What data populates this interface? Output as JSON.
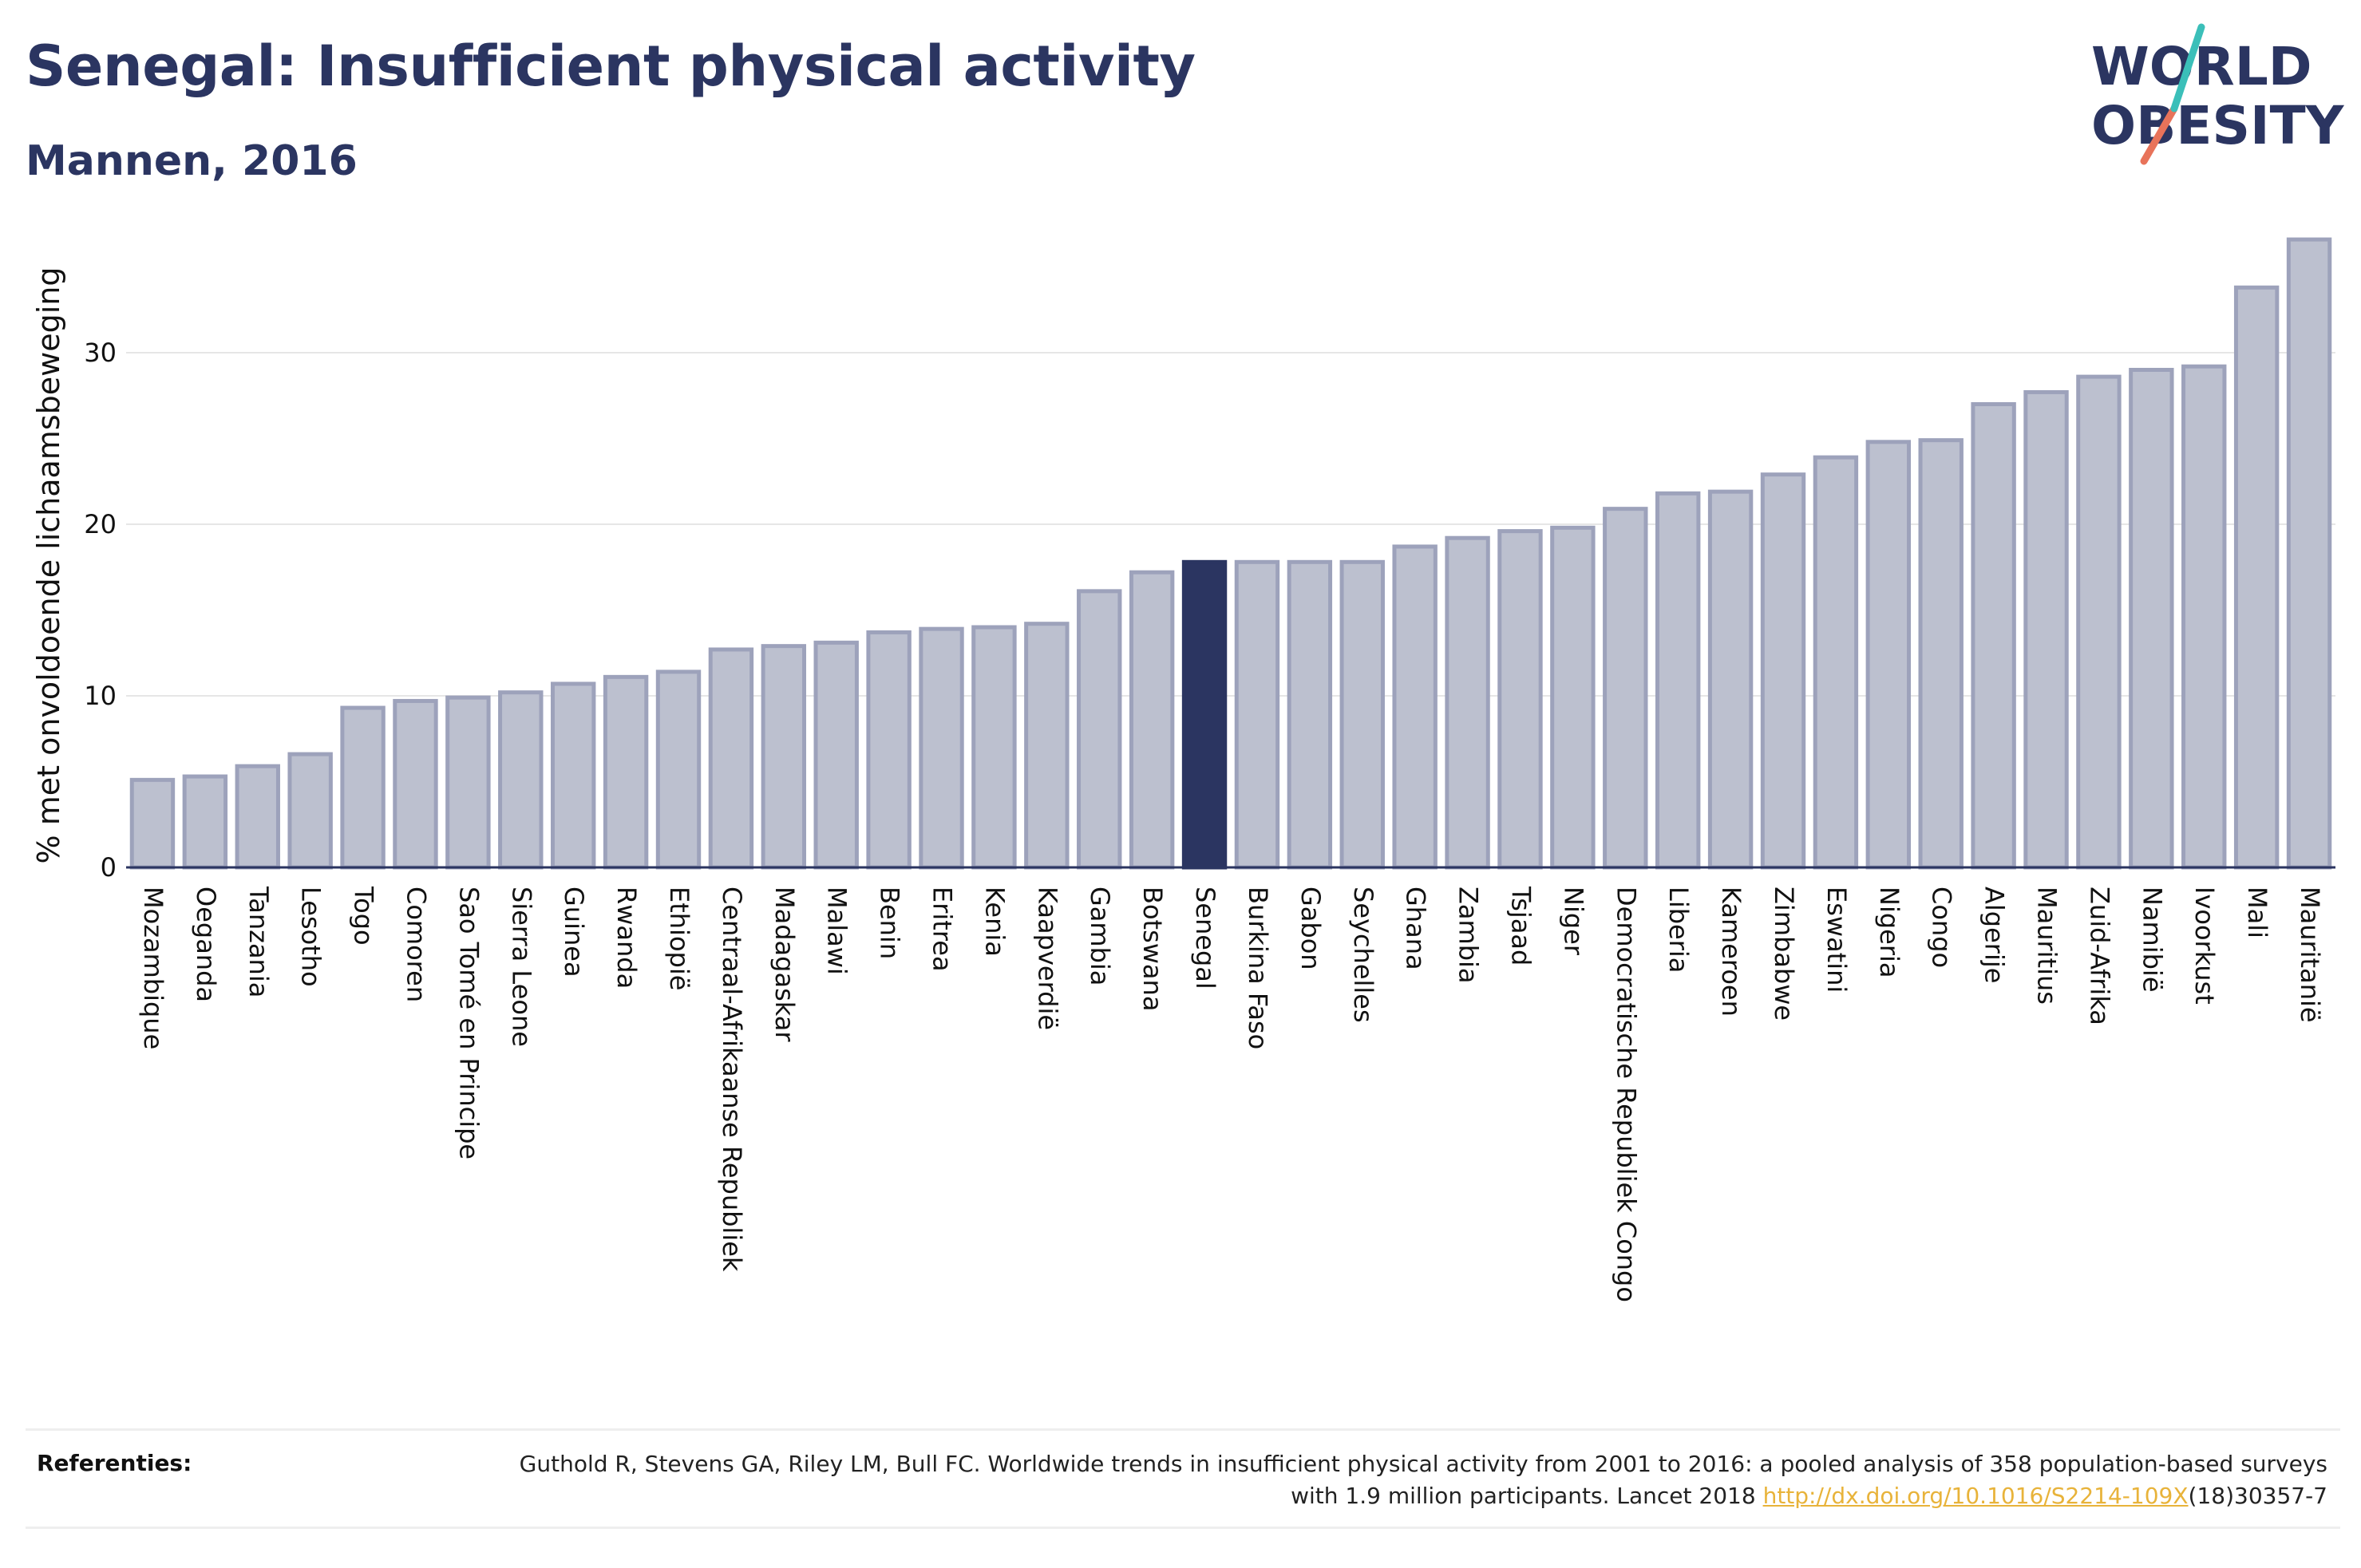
{
  "header": {
    "title": "Senegal: Insufficient physical activity",
    "subtitle": "Mannen, 2016"
  },
  "logo": {
    "line1": "WORLD",
    "line2": "OBESITY"
  },
  "colors": {
    "highlight": "#2b3561",
    "bar_fill": "#bcc0cf",
    "bar_stroke": "#9da2bb",
    "grid": "#e6e6e6",
    "logo_teal": "#3bbfb9",
    "logo_coral": "#e8735a"
  },
  "chart_data": {
    "type": "bar",
    "ylabel": "% met onvoldoende lichaamsbeweging",
    "ylim": [
      0,
      38
    ],
    "yticks": [
      0,
      10,
      20,
      30
    ],
    "highlight": "Senegal",
    "categories": [
      "Mozambique",
      "Oeganda",
      "Tanzania",
      "Lesotho",
      "Togo",
      "Comoren",
      "Sao Tomé en Principe",
      "Sierra Leone",
      "Guinea",
      "Rwanda",
      "Ethiopië",
      "Centraal-Afrikaanse Republiek",
      "Madagaskar",
      "Malawi",
      "Benin",
      "Eritrea",
      "Kenia",
      "Kaapverdië",
      "Gambia",
      "Botswana",
      "Senegal",
      "Burkina Faso",
      "Gabon",
      "Seychelles",
      "Ghana",
      "Zambia",
      "Tsjaad",
      "Niger",
      "Democratische Republiek Congo",
      "Liberia",
      "Kameroen",
      "Zimbabwe",
      "Eswatini",
      "Nigeria",
      "Congo",
      "Algerije",
      "Mauritius",
      "Zuid-Afrika",
      "Namibië",
      "Ivoorkust",
      "Mali",
      "Mauritanië"
    ],
    "values": [
      5.1,
      5.3,
      5.9,
      6.6,
      9.3,
      9.7,
      9.9,
      10.2,
      10.7,
      11.1,
      11.4,
      12.7,
      12.9,
      13.1,
      13.7,
      13.9,
      14.0,
      14.2,
      16.1,
      17.2,
      17.8,
      17.8,
      17.8,
      17.8,
      18.7,
      19.2,
      19.6,
      19.8,
      20.9,
      21.8,
      21.9,
      22.9,
      23.9,
      24.8,
      24.9,
      27.0,
      27.7,
      28.6,
      29.0,
      29.2,
      33.8,
      36.6
    ]
  },
  "references": {
    "label": "Referenties:",
    "text_part1": "Guthold R, Stevens GA, Riley LM, Bull FC. Worldwide trends in insufficient physical activity from 2001 to 2016: a pooled analysis of 358 population-based surveys with 1.9 million participants. Lancet 2018 ",
    "link_text": "http://dx.doi.org/10.1016/S2214-109X",
    "text_part2": "(18)30357-7"
  }
}
